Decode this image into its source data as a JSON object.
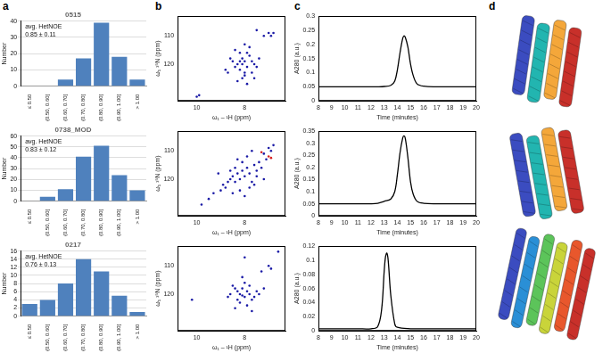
{
  "panel_labels": [
    "a",
    "b",
    "c",
    "d"
  ],
  "chart_data": [
    {
      "type": "bar",
      "title": "0515",
      "annotations": [
        "avg. HetNOE",
        "0.85 ± 0.11"
      ],
      "y_label": "Number",
      "categories": [
        "≤ 0.50",
        "(0.50, 0.60]",
        "(0.60, 0.70]",
        "(0.70, 0.80]",
        "(0.80, 0.90]",
        "(0.90, 1.00]",
        "> 1.00"
      ],
      "values": [
        0,
        0,
        4,
        17,
        39,
        18,
        4
      ],
      "color": "#4f81bd",
      "ylim": [
        0,
        40
      ],
      "yticks": [
        0,
        10,
        20,
        30,
        40
      ],
      "grid": true
    },
    {
      "type": "bar",
      "title": "0738_MOD",
      "annotations": [
        "avg. HetNOE",
        "0.83 ± 0.12"
      ],
      "y_label": "Number",
      "categories": [
        "≤ 0.50",
        "(0.50, 0.60]",
        "(0.60, 0.70]",
        "(0.70, 0.80]",
        "(0.80, 0.90]",
        "(0.90, 1.00]",
        "> 1.00"
      ],
      "values": [
        0,
        4,
        11,
        41,
        51,
        24,
        10
      ],
      "color": "#4f81bd",
      "ylim": [
        0,
        60
      ],
      "yticks": [
        0,
        10,
        20,
        30,
        40,
        50,
        60
      ],
      "grid": true
    },
    {
      "type": "bar",
      "title": "0217",
      "annotations": [
        "avg. HetNOE",
        "0.76 ± 0.13"
      ],
      "y_label": "Number",
      "categories": [
        "≤ 0.50",
        "(0.50, 0.60]",
        "(0.60, 0.70]",
        "(0.70, 0.80]",
        "(0.80, 0.90]",
        "(0.90, 1.00]",
        "> 1.00"
      ],
      "values": [
        3,
        4,
        8,
        14,
        11,
        5,
        1
      ],
      "color": "#4f81bd",
      "ylim": [
        0,
        16
      ],
      "yticks": [
        0,
        2,
        4,
        6,
        8,
        10,
        12,
        14,
        16
      ],
      "grid": true
    },
    {
      "type": "scatter",
      "x_label": "ω₁ – ¹H (ppm)",
      "y_label": "ω₁ ¹⁵N (ppm)",
      "xlim": [
        10.8,
        6.3
      ],
      "xticks": [
        10,
        8
      ],
      "ylim": [
        133,
        103
      ],
      "yticks": [
        110,
        120
      ],
      "grid": false,
      "series": [
        {
          "color": "#1a1aa6",
          "x": [
            8.1,
            8.0,
            7.9,
            8.3,
            8.2,
            7.8,
            7.7,
            8.4,
            8.5,
            7.6,
            8.0,
            8.2,
            7.9,
            8.1,
            7.5,
            8.6,
            8.3,
            7.7,
            7.4,
            8.0,
            8.8,
            7.2,
            7.0,
            6.9,
            6.8,
            7.5,
            8.4,
            7.9,
            8.1,
            8.7,
            8.0,
            7.8,
            9.9,
            10.0,
            7.6,
            8.2
          ],
          "values": [
            118,
            119,
            121,
            120,
            122,
            117,
            123,
            121,
            119,
            120,
            124,
            116,
            116,
            125,
            121,
            118,
            126,
            119,
            118,
            113,
            122,
            110,
            109,
            110,
            109,
            108,
            115,
            127,
            120,
            123,
            123,
            114,
            131,
            131.5,
            125,
            119
          ]
        }
      ]
    },
    {
      "type": "scatter",
      "x_label": "ω₁ – ¹H (ppm)",
      "y_label": "ω₁ ¹⁵N (ppm)",
      "xlim": [
        10.8,
        6.3
      ],
      "xticks": [
        10,
        8
      ],
      "ylim": [
        133,
        103
      ],
      "yticks": [
        110,
        120
      ],
      "grid": false,
      "series": [
        {
          "color": "#1a1aa6",
          "x": [
            9.8,
            9.5,
            9.3,
            9.0,
            8.9,
            8.8,
            8.7,
            8.6,
            8.5,
            8.4,
            8.3,
            8.2,
            8.1,
            8.0,
            7.9,
            7.8,
            7.7,
            7.6,
            7.5,
            7.4,
            7.3,
            7.2,
            7.1,
            7.0,
            6.9,
            8.5,
            8.2,
            8.0,
            7.8,
            7.6,
            8.3,
            8.1,
            7.9,
            7.7,
            8.6,
            8.4,
            7.5,
            7.2,
            6.8,
            9.1
          ],
          "values": [
            129,
            127,
            125,
            124,
            122,
            123,
            121,
            120,
            119,
            121,
            118,
            120,
            117,
            119,
            116,
            118,
            121,
            115,
            117,
            114,
            116,
            111,
            113,
            109,
            110,
            125,
            124,
            126,
            123,
            122,
            113,
            114,
            112,
            110,
            117,
            116,
            119,
            120,
            108,
            118
          ]
        },
        {
          "color": "#d62020",
          "x": [
            7.3,
            7.0,
            6.9
          ],
          "values": [
            110.5,
            112,
            112.5
          ]
        }
      ]
    },
    {
      "type": "scatter",
      "x_label": "ω₁ – ¹H (ppm)",
      "y_label": "ω₁ ¹⁵N (ppm)",
      "xlim": [
        10.8,
        6.3
      ],
      "xticks": [
        10,
        8
      ],
      "ylim": [
        133,
        103
      ],
      "yticks": [
        110,
        120
      ],
      "grid": false,
      "series": [
        {
          "color": "#1a1aa6",
          "x": [
            8.3,
            8.2,
            8.1,
            8.0,
            7.9,
            7.8,
            7.7,
            8.4,
            8.5,
            8.6,
            7.6,
            7.5,
            8.0,
            8.2,
            7.9,
            8.1,
            7.8,
            8.3,
            7.4,
            7.3,
            8.7,
            7.0,
            6.9,
            10.2,
            8.0,
            7.7,
            8.4,
            7.2,
            6.6,
            8.1
          ],
          "values": [
            119,
            120,
            118,
            121,
            119,
            120,
            122,
            118,
            117,
            120,
            121,
            119,
            116,
            123,
            124,
            114,
            117,
            122,
            120,
            112,
            121,
            110,
            111,
            122,
            107,
            126,
            125,
            118,
            105,
            120.5
          ]
        }
      ]
    },
    {
      "type": "line",
      "x_label": "Time (minutes)",
      "y_label": "A280 (a.u.)",
      "color": "#000000",
      "grid": false,
      "x": [
        8,
        9,
        10,
        11,
        12,
        12.5,
        13,
        13.5,
        13.8,
        14,
        14.2,
        14.4,
        14.5,
        14.6,
        14.8,
        15,
        15.2,
        15.5,
        16,
        17,
        18,
        19,
        20
      ],
      "values": [
        0.05,
        0.05,
        0.05,
        0.05,
        0.05,
        0.05,
        0.051,
        0.055,
        0.07,
        0.11,
        0.17,
        0.22,
        0.23,
        0.225,
        0.19,
        0.13,
        0.09,
        0.06,
        0.052,
        0.05,
        0.05,
        0.05,
        0.05
      ],
      "xlim": [
        8,
        20
      ],
      "xticks": [
        8,
        9,
        10,
        11,
        12,
        13,
        14,
        15,
        16,
        17,
        18,
        19,
        20
      ],
      "ylim": [
        0,
        0.3
      ],
      "yticks": [
        0,
        0.05,
        0.1,
        0.15,
        0.2,
        0.25,
        0.3
      ]
    },
    {
      "type": "line",
      "x_label": "Time (minutes)",
      "y_label": "A280 (a.u.)",
      "color": "#000000",
      "grid": false,
      "x": [
        8,
        9,
        10,
        11,
        12,
        12.5,
        13,
        13.5,
        13.8,
        14,
        14.2,
        14.4,
        14.5,
        14.6,
        14.8,
        15,
        15.2,
        15.5,
        16,
        17,
        18,
        19,
        20
      ],
      "values": [
        0.05,
        0.05,
        0.05,
        0.05,
        0.05,
        0.052,
        0.06,
        0.07,
        0.1,
        0.17,
        0.26,
        0.32,
        0.33,
        0.32,
        0.24,
        0.14,
        0.09,
        0.06,
        0.052,
        0.05,
        0.05,
        0.05,
        0.05
      ],
      "xlim": [
        8,
        20
      ],
      "xticks": [
        8,
        9,
        10,
        11,
        12,
        13,
        14,
        15,
        16,
        17,
        18,
        19,
        20
      ],
      "ylim": [
        0,
        0.35
      ],
      "yticks": [
        0,
        0.05,
        0.1,
        0.15,
        0.2,
        0.25,
        0.3,
        0.35
      ]
    },
    {
      "type": "line",
      "x_label": "Time (minutes)",
      "y_label": "A280 (a.u.)",
      "color": "#000000",
      "grid": false,
      "x": [
        8,
        9,
        10,
        11,
        12,
        12.5,
        12.8,
        13,
        13.1,
        13.2,
        13.3,
        13.5,
        13.8,
        14,
        15,
        16,
        17,
        18,
        19,
        20
      ],
      "values": [
        0.003,
        0.003,
        0.003,
        0.003,
        0.003,
        0.006,
        0.03,
        0.085,
        0.105,
        0.11,
        0.1,
        0.05,
        0.01,
        0.005,
        0.003,
        0.003,
        0.003,
        0.003,
        0.003,
        0.003
      ],
      "xlim": [
        8,
        20
      ],
      "xticks": [
        8,
        9,
        10,
        11,
        12,
        13,
        14,
        15,
        16,
        17,
        18,
        19,
        20
      ],
      "ylim": [
        0,
        0.12
      ],
      "yticks": [
        0,
        0.02,
        0.04,
        0.06,
        0.08,
        0.1,
        0.12
      ]
    }
  ]
}
